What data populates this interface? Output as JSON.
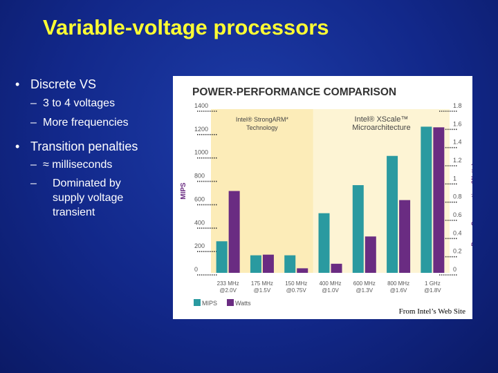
{
  "slide": {
    "title": "Variable-voltage processors",
    "bullets": [
      {
        "text": "Discrete VS",
        "subs": [
          "3 to 4 voltages",
          "More frequencies"
        ]
      },
      {
        "text": "Transition penalties",
        "subs": [
          "≈ milliseconds",
          "Dominated by",
          "supply voltage",
          "transient"
        ]
      }
    ],
    "bullet_mark": "•",
    "sub_mark": "–"
  },
  "chart_data": {
    "type": "bar",
    "title": "POWER-PERFORMANCE COMPARISON",
    "ylabel": "MIPS",
    "y2label": "Power Consumption (Watts)",
    "ylim": [
      0,
      1400
    ],
    "y2lim": [
      0,
      1.8
    ],
    "yticks": [
      "0",
      "200",
      "400",
      "600",
      "800",
      "1000",
      "1200",
      "1400"
    ],
    "y2ticks": [
      "0",
      "0.2",
      "0.4",
      "0.6",
      "0.8",
      "1",
      "1.2",
      "1.4",
      "1.6",
      "1.8"
    ],
    "categories": [
      [
        "233 MHz",
        "@2.0V"
      ],
      [
        "175 MHz",
        "@1.5V"
      ],
      [
        "150 MHz",
        "@0.75V"
      ],
      [
        "400 MHz",
        "@1.0V"
      ],
      [
        "600 MHz",
        "@1.3V"
      ],
      [
        "800 MHz",
        "@1.6V"
      ],
      [
        "1 GHz",
        "@1.8V"
      ]
    ],
    "series": [
      {
        "name": "MIPS",
        "axis": "left",
        "color": "#2a9aa0",
        "values": [
          270,
          150,
          150,
          510,
          750,
          1000,
          1250
        ]
      },
      {
        "name": "Watts",
        "axis": "right",
        "color": "#6a2c82",
        "values": [
          0.9,
          0.2,
          0.05,
          0.1,
          0.4,
          0.8,
          1.6
        ]
      }
    ],
    "groups": [
      {
        "label": [
          "Intel® StrongARM*",
          "Technology"
        ],
        "from": 0,
        "to": 2,
        "color": "#fcecb8"
      },
      {
        "label": [
          "Intel® XScale™",
          "Microarchitecture"
        ],
        "from": 3,
        "to": 6,
        "color": "#fdf4d4"
      }
    ],
    "source": "From Intel’s Web Site"
  }
}
